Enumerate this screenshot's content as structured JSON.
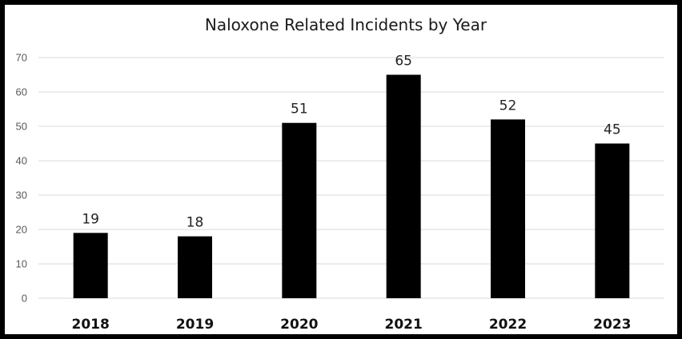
{
  "chart_data": {
    "type": "bar",
    "title": "Naloxone Related Incidents by Year",
    "xlabel": "",
    "ylabel": "",
    "categories": [
      "2018",
      "2019",
      "2020",
      "2021",
      "2022",
      "2023"
    ],
    "values": [
      19,
      18,
      51,
      65,
      52,
      45
    ],
    "value_labels": [
      "19",
      "18",
      "51",
      "65",
      "52",
      "45"
    ],
    "yticks": [
      0,
      10,
      20,
      30,
      40,
      50,
      60,
      70
    ],
    "ytick_labels": [
      "0",
      "10",
      "20",
      "30",
      "40",
      "50",
      "60",
      "70"
    ],
    "ylim": [
      0,
      70
    ],
    "grid": true,
    "legend": "none",
    "colors": {
      "bar": "#000000",
      "gridline": "#d9d9d9",
      "background": "#ffffff",
      "border": "#000000"
    }
  }
}
